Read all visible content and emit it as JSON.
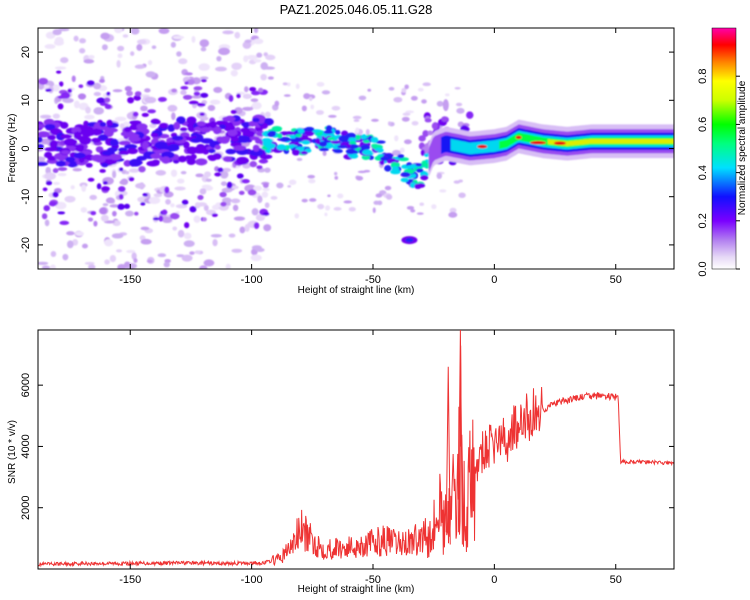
{
  "title": "PAZ1.2025.046.05.11.G28",
  "chart_data": [
    {
      "type": "heatmap",
      "xlabel": "Height of straight line (km)",
      "ylabel": "Frequency (Hz)",
      "xlim": [
        -188,
        74
      ],
      "ylim": [
        -25,
        25
      ],
      "xticks": [
        "-150",
        "-100",
        "-50",
        "0",
        "50"
      ],
      "yticks": [
        "-20",
        "-10",
        "0",
        "10",
        "20"
      ],
      "colorbar": {
        "label": "Normalized spectral amplitude",
        "ticks": [
          "0.0",
          "0.2",
          "0.4",
          "0.6",
          "0.8"
        ],
        "range": [
          0,
          1
        ]
      },
      "main_trace": [
        [
          -188,
          1
        ],
        [
          -160,
          1
        ],
        [
          -130,
          1.5
        ],
        [
          -100,
          2
        ],
        [
          -90,
          2
        ],
        [
          -80,
          1.5
        ],
        [
          -70,
          2
        ],
        [
          -60,
          0.5
        ],
        [
          -50,
          0
        ],
        [
          -45,
          -1.5
        ],
        [
          -40,
          -3
        ],
        [
          -35,
          -5
        ],
        [
          -30,
          -6
        ],
        [
          -25,
          0
        ],
        [
          -20,
          1
        ],
        [
          -10,
          0
        ],
        [
          0,
          0.5
        ],
        [
          5,
          1
        ],
        [
          10,
          2.5
        ],
        [
          20,
          1.5
        ],
        [
          30,
          1
        ],
        [
          40,
          1.5
        ],
        [
          50,
          1.5
        ],
        [
          60,
          1.5
        ],
        [
          74,
          1.5
        ]
      ],
      "features": [
        {
          "x": -35,
          "y": -19
        },
        {
          "x": -20,
          "y": 9
        }
      ]
    },
    {
      "type": "line",
      "xlabel": "Height of straight line (km)",
      "ylabel": "SNR (10 * v/v)",
      "xlim": [
        -188,
        74
      ],
      "ylim": [
        0,
        7800
      ],
      "xticks": [
        "-150",
        "-100",
        "-50",
        "0",
        "50"
      ],
      "yticks": [
        "2000",
        "4000",
        "6000"
      ],
      "color": "#ee3333",
      "series": [
        {
          "x": [
            -188,
            -170,
            -150,
            -130,
            -110,
            -95,
            -88,
            -83,
            -80,
            -75,
            -70,
            -60,
            -50,
            -45,
            -40,
            -35,
            -30,
            -27,
            -25,
            -22,
            -20,
            -18,
            -16,
            -14,
            -12,
            -10,
            -8,
            -5,
            -2,
            0,
            3,
            5,
            8,
            10,
            12,
            15,
            20,
            25,
            30,
            35,
            40,
            45,
            50,
            51,
            52,
            60,
            74
          ],
          "y": [
            150,
            180,
            180,
            200,
            180,
            200,
            350,
            800,
            1300,
            900,
            650,
            700,
            850,
            950,
            800,
            900,
            1000,
            1500,
            1400,
            2000,
            1500,
            2500,
            1800,
            4500,
            1500,
            2800,
            3000,
            3800,
            4000,
            4100,
            4300,
            4000,
            4800,
            4300,
            4900,
            5000,
            5200,
            5400,
            5500,
            5600,
            5650,
            5650,
            5600,
            5600,
            3500,
            3500,
            3450
          ]
        }
      ],
      "peaks": [
        [
          -14,
          7800
        ],
        [
          -19,
          6600
        ]
      ]
    }
  ]
}
